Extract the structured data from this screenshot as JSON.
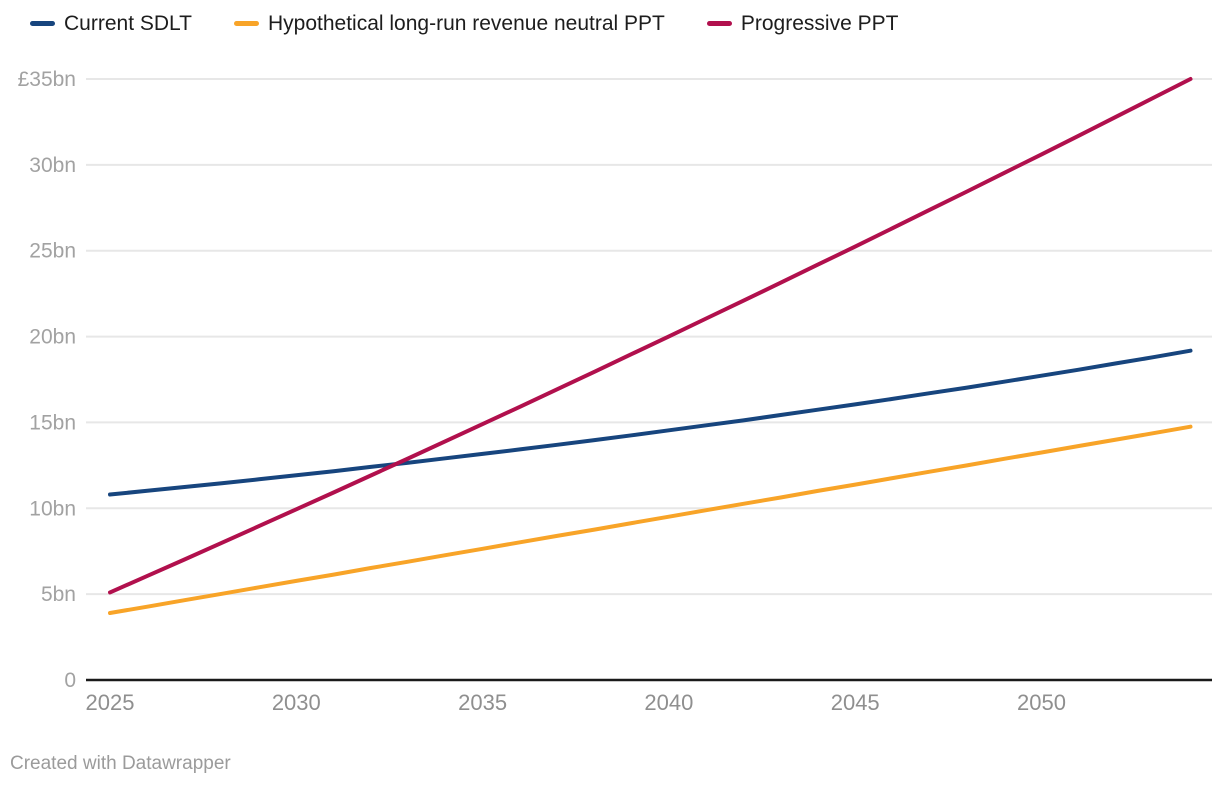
{
  "chart_data": {
    "type": "line",
    "title": "",
    "xlabel": "",
    "ylabel": "",
    "x": [
      2025,
      2026,
      2027,
      2028,
      2029,
      2030,
      2031,
      2032,
      2033,
      2034,
      2035,
      2036,
      2037,
      2038,
      2039,
      2040,
      2041,
      2042,
      2043,
      2044,
      2045,
      2046,
      2047,
      2048,
      2049,
      2050,
      2051,
      2052,
      2053,
      2054
    ],
    "series": [
      {
        "name": "Current SDLT",
        "color": "#17457e",
        "values": [
          10.8,
          11.02,
          11.24,
          11.46,
          11.69,
          11.92,
          12.16,
          12.41,
          12.65,
          12.91,
          13.17,
          13.43,
          13.7,
          13.97,
          14.25,
          14.54,
          14.83,
          15.12,
          15.43,
          15.74,
          16.05,
          16.37,
          16.7,
          17.03,
          17.37,
          17.72,
          18.07,
          18.44,
          18.8,
          19.18
        ]
      },
      {
        "name": "Hypothetical long-run revenue neutral PPT",
        "color": "#f8a428",
        "values": [
          3.9,
          4.27,
          4.65,
          5.02,
          5.4,
          5.77,
          6.14,
          6.52,
          6.89,
          7.27,
          7.64,
          8.02,
          8.39,
          8.76,
          9.14,
          9.51,
          9.89,
          10.26,
          10.63,
          11.01,
          11.38,
          11.76,
          12.13,
          12.5,
          12.88,
          13.25,
          13.63,
          14.0,
          14.37,
          14.75
        ]
      },
      {
        "name": "Progressive PPT",
        "color": "#b1104d",
        "values": [
          5.1,
          6.06,
          7.02,
          7.99,
          8.96,
          9.94,
          10.92,
          11.91,
          12.9,
          13.9,
          14.9,
          15.91,
          16.93,
          17.95,
          18.98,
          20.01,
          21.05,
          22.09,
          23.14,
          24.19,
          25.24,
          26.31,
          27.38,
          28.45,
          29.53,
          30.61,
          31.7,
          32.8,
          33.9,
          35.0
        ]
      }
    ],
    "ylim": [
      0,
      35
    ],
    "xlim": [
      2025,
      2054.6
    ],
    "yticks": {
      "values": [
        0,
        5,
        10,
        15,
        20,
        25,
        30,
        35
      ],
      "labels": [
        "0",
        "5bn",
        "10bn",
        "15bn",
        "20bn",
        "25bn",
        "30bn",
        "£35bn"
      ]
    },
    "xticks": {
      "values": [
        2025,
        2030,
        2035,
        2040,
        2045,
        2050
      ],
      "labels": [
        "2025",
        "2030",
        "2035",
        "2040",
        "2045",
        "2050"
      ]
    },
    "grid": "horizontal",
    "legend_position": "top"
  },
  "footer": {
    "credit": "Created with Datawrapper"
  },
  "colors": {
    "axis": "#1a1a1a",
    "grid": "#e7e7e7",
    "ytick_text": "#a2a2a2",
    "xtick_text": "#8f8f8f",
    "legend_text": "#1d1d1d",
    "credit_text": "#9b9b9b"
  }
}
